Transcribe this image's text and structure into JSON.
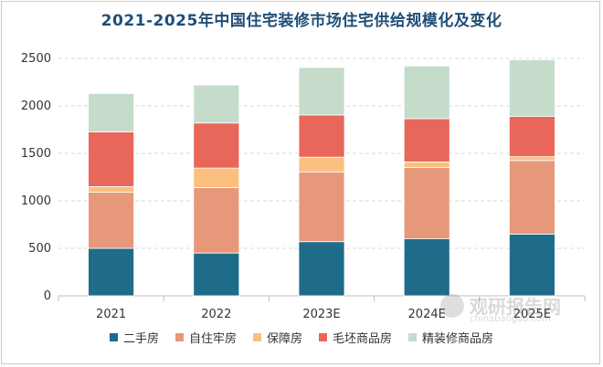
{
  "chart_data": {
    "type": "bar",
    "stacked": true,
    "title": "2021-2025年中国住宅装修市场住宅供给规模化及变化",
    "categories": [
      "2021",
      "2022",
      "2023E",
      "2024E",
      "2025E"
    ],
    "ylim": [
      0,
      2500
    ],
    "yticks": [
      0,
      500,
      1000,
      1500,
      2000,
      2500
    ],
    "grid": true,
    "legend_position": "bottom",
    "series": [
      {
        "name": "二手房",
        "color": "#1e6b8a",
        "values": [
          500,
          450,
          570,
          600,
          650
        ]
      },
      {
        "name": "自住牢房",
        "color": "#e8987a",
        "values": [
          590,
          690,
          735,
          750,
          775
        ]
      },
      {
        "name": "保障房",
        "color": "#fbc07f",
        "values": [
          60,
          205,
          155,
          60,
          40
        ]
      },
      {
        "name": "毛坯商品房",
        "color": "#e9665b",
        "values": [
          575,
          475,
          445,
          455,
          425
        ]
      },
      {
        "name": "精装修商品房",
        "color": "#c5dccb",
        "values": [
          405,
          400,
          500,
          555,
          595
        ]
      }
    ]
  },
  "watermark": {
    "text": "观研报告网",
    "url": "chinabaogao.com"
  }
}
